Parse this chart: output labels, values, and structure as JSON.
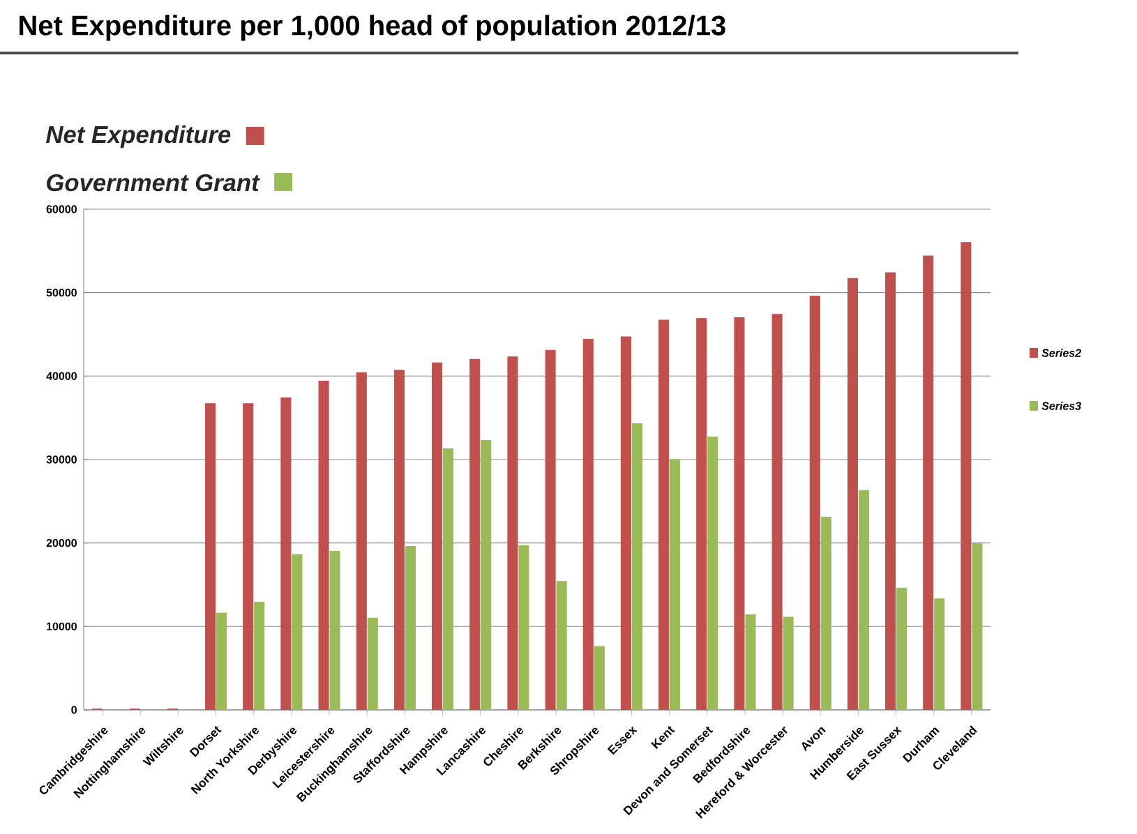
{
  "chart_data": {
    "type": "bar",
    "title": "Net Expenditure per 1,000 head of population 2012/13",
    "annotations": [
      "Net Expenditure",
      "Government  Grant"
    ],
    "categories": [
      "Cambridgeshire",
      "Nottinghamshire",
      "Wiltshire",
      "Dorset",
      "North Yorkshire",
      "Derbyshire",
      "Leicestershire",
      "Buckinghamshire",
      "Staffordshire",
      "Hampshire",
      "Lancashire",
      "Cheshire",
      "Berkshire",
      "Shropshire",
      "Essex",
      "Kent",
      "Devon and Somerset",
      "Bedfordshire",
      "Hereford & Worcester",
      "Avon",
      "Humberside",
      "East Sussex",
      "Durham",
      "Cleveland"
    ],
    "series": [
      {
        "name": "Series2",
        "color": "#c0504d",
        "values": [
          100,
          100,
          100,
          36700,
          36700,
          37400,
          39400,
          40400,
          40700,
          41600,
          42000,
          42300,
          43100,
          44400,
          44700,
          46700,
          46900,
          47000,
          47400,
          49600,
          51700,
          52400,
          54400,
          56000
        ]
      },
      {
        "name": "Series3",
        "color": "#9bbb59",
        "values": [
          0,
          0,
          0,
          11600,
          12900,
          18600,
          19000,
          11000,
          19600,
          31300,
          32300,
          19700,
          15400,
          7600,
          34300,
          30000,
          32700,
          11400,
          11100,
          23100,
          26300,
          14600,
          13300,
          19900
        ]
      }
    ],
    "ylim": [
      0,
      60000
    ],
    "yticks": [
      0,
      10000,
      20000,
      30000,
      40000,
      50000,
      60000
    ],
    "grid": "y",
    "legend": "right"
  }
}
